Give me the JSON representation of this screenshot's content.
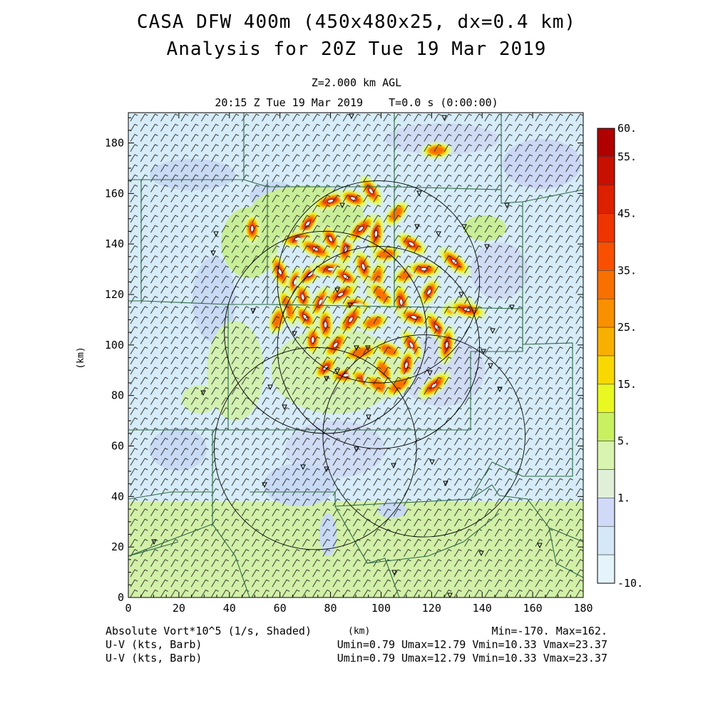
{
  "header": {
    "title_line1": "CASA DFW 400m (450x480x25, dx=0.4 km)",
    "title_line2": "Analysis for 20Z Tue 19 Mar 2019",
    "level": "Z=2.000 km AGL",
    "valid_time": "20:15 Z Tue 19 Mar 2019    T=0.0 s (0:00:00)"
  },
  "footer": {
    "field1": "Absolute Vort*10^5 (1/s, Shaded)",
    "xunit": "(km)",
    "field1_stats": "Min=-170. Max=162.",
    "field2": "U-V (kts, Barb)",
    "field2_stats": "Umin=0.79 Umax=12.79 Vmin=10.33 Vmax=23.37",
    "field3": "U-V (kts, Barb)",
    "field3_stats": "Umin=0.79 Umax=12.79 Vmin=10.33 Vmax=23.37"
  },
  "chart_data": {
    "type": "heatmap",
    "title": "CASA DFW 400m (450x480x25, dx=0.4 km)",
    "subtitle": "Analysis for 20Z Tue 19 Mar 2019",
    "xlabel": "(km)",
    "ylabel": "(km)",
    "xlim": [
      0,
      180
    ],
    "ylim": [
      0,
      192
    ],
    "x_ticks": [
      0,
      20,
      40,
      60,
      80,
      100,
      120,
      140,
      160,
      180
    ],
    "y_ticks": [
      0,
      20,
      40,
      60,
      80,
      100,
      120,
      140,
      160,
      180
    ],
    "x_tick_labels": [
      "0",
      "20",
      "40",
      "60",
      "80",
      "100",
      "120",
      "140",
      "160",
      "180"
    ],
    "y_tick_labels": [
      "0",
      "20",
      "40",
      "60",
      "80",
      "100",
      "120",
      "140",
      "160",
      "180"
    ],
    "colorbar": {
      "label_values": [
        "60.",
        "55.",
        "45.",
        "35.",
        "25.",
        "15.",
        "5.",
        "1.",
        "-10."
      ],
      "levels": [
        {
          "value": 60,
          "color": "#b00000"
        },
        {
          "value": 55,
          "color": "#c81000"
        },
        {
          "value": 50,
          "color": "#dc2000"
        },
        {
          "value": 45,
          "color": "#ee3400"
        },
        {
          "value": 40,
          "color": "#f85000"
        },
        {
          "value": 35,
          "color": "#f87000"
        },
        {
          "value": 30,
          "color": "#f89000"
        },
        {
          "value": 25,
          "color": "#f8b000"
        },
        {
          "value": 20,
          "color": "#f8d800"
        },
        {
          "value": 15,
          "color": "#e8f820"
        },
        {
          "value": 10,
          "color": "#c8f060"
        },
        {
          "value": 5,
          "color": "#d8f4b0"
        },
        {
          "value": 1,
          "color": "#e0f0d8"
        },
        {
          "value": -1,
          "color": "#d0daf8"
        },
        {
          "value": -5,
          "color": "#d4e8f8"
        },
        {
          "value": -10,
          "color": "#e4f4fa"
        }
      ]
    },
    "background_regions": [
      {
        "name": "north",
        "y_range": [
          38,
          192
        ],
        "color": "#d6ecf8"
      },
      {
        "name": "south",
        "y_range": [
          0,
          38
        ],
        "color": "#d2f0a8"
      }
    ],
    "vorticity_cells": [
      {
        "x": 49,
        "y": 146,
        "v": 45
      },
      {
        "x": 71,
        "y": 148,
        "v": 55
      },
      {
        "x": 80,
        "y": 157,
        "v": 50
      },
      {
        "x": 89,
        "y": 158,
        "v": 45
      },
      {
        "x": 96,
        "y": 161,
        "v": 50
      },
      {
        "x": 98,
        "y": 144,
        "v": 55
      },
      {
        "x": 106,
        "y": 152,
        "v": 40
      },
      {
        "x": 67,
        "y": 142,
        "v": 50
      },
      {
        "x": 74,
        "y": 138,
        "v": 45
      },
      {
        "x": 80,
        "y": 142,
        "v": 50
      },
      {
        "x": 86,
        "y": 138,
        "v": 55
      },
      {
        "x": 92,
        "y": 146,
        "v": 45
      },
      {
        "x": 102,
        "y": 136,
        "v": 40
      },
      {
        "x": 112,
        "y": 140,
        "v": 45
      },
      {
        "x": 60,
        "y": 129,
        "v": 45
      },
      {
        "x": 66,
        "y": 125,
        "v": 50
      },
      {
        "x": 72,
        "y": 128,
        "v": 55
      },
      {
        "x": 80,
        "y": 130,
        "v": 45
      },
      {
        "x": 86,
        "y": 127,
        "v": 50
      },
      {
        "x": 93,
        "y": 131,
        "v": 45
      },
      {
        "x": 98,
        "y": 126,
        "v": 40
      },
      {
        "x": 110,
        "y": 128,
        "v": 40
      },
      {
        "x": 117,
        "y": 130,
        "v": 45
      },
      {
        "x": 129,
        "y": 133,
        "v": 50
      },
      {
        "x": 69,
        "y": 119,
        "v": 50
      },
      {
        "x": 76,
        "y": 117,
        "v": 45
      },
      {
        "x": 84,
        "y": 120,
        "v": 50
      },
      {
        "x": 90,
        "y": 116,
        "v": 45
      },
      {
        "x": 100,
        "y": 120,
        "v": 40
      },
      {
        "x": 108,
        "y": 117,
        "v": 45
      },
      {
        "x": 119,
        "y": 121,
        "v": 55
      },
      {
        "x": 130,
        "y": 115,
        "v": 50
      },
      {
        "x": 134,
        "y": 114,
        "v": 55
      },
      {
        "x": 70,
        "y": 111,
        "v": 55
      },
      {
        "x": 78,
        "y": 108,
        "v": 50
      },
      {
        "x": 88,
        "y": 110,
        "v": 45
      },
      {
        "x": 97,
        "y": 109,
        "v": 40
      },
      {
        "x": 113,
        "y": 111,
        "v": 45
      },
      {
        "x": 122,
        "y": 107,
        "v": 50
      },
      {
        "x": 73,
        "y": 102,
        "v": 50
      },
      {
        "x": 82,
        "y": 100,
        "v": 45
      },
      {
        "x": 92,
        "y": 97,
        "v": 40
      },
      {
        "x": 103,
        "y": 98,
        "v": 40
      },
      {
        "x": 112,
        "y": 100,
        "v": 45
      },
      {
        "x": 126,
        "y": 100,
        "v": 55
      },
      {
        "x": 78,
        "y": 91,
        "v": 55
      },
      {
        "x": 86,
        "y": 88,
        "v": 45
      },
      {
        "x": 94,
        "y": 86,
        "v": 55
      },
      {
        "x": 101,
        "y": 90,
        "v": 40
      },
      {
        "x": 110,
        "y": 92,
        "v": 45
      },
      {
        "x": 121,
        "y": 84,
        "v": 45
      },
      {
        "x": 122,
        "y": 177,
        "v": 40
      },
      {
        "x": 99,
        "y": 84,
        "v": 40
      },
      {
        "x": 63,
        "y": 115,
        "v": 40
      },
      {
        "x": 59,
        "y": 110,
        "v": 35
      },
      {
        "x": 107,
        "y": 84,
        "v": 35
      }
    ],
    "radar_range_rings": [
      {
        "x": 99,
        "y": 125,
        "r": 40
      },
      {
        "x": 78,
        "y": 105,
        "r": 40
      },
      {
        "x": 99,
        "y": 99,
        "r": 40
      },
      {
        "x": 74,
        "y": 59,
        "r": 40
      },
      {
        "x": 117,
        "y": 64,
        "r": 40
      }
    ],
    "wind_barb": {
      "u_range": [
        0.79,
        12.79
      ],
      "v_range": [
        10.33,
        23.37
      ],
      "units": "kts"
    },
    "stats": {
      "min": -170,
      "max": 162
    }
  }
}
